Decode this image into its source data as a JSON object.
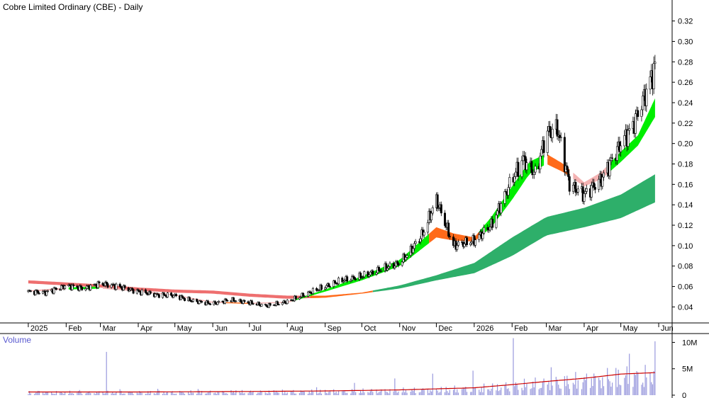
{
  "chart_title": "Cobre Limited Ordinary (CBE) - Daily",
  "volume_title": "Volume",
  "colors": {
    "candle_up": "#ffffff",
    "candle_outline": "#000000",
    "short_ribbon_up": "#00ee00",
    "short_ribbon_down": "#ff6a1a",
    "long_ribbon_up": "#2eaf6a",
    "long_ribbon_down": "#ee6f6f",
    "pink_ribbon": "#f4b3b3",
    "volume_bar": "#9999dd",
    "volume_ma": "#cc0000",
    "axis": "#000000",
    "grid": "#000000"
  },
  "chart_data": [
    {
      "type": "candlestick",
      "title": "Cobre Limited Ordinary (CBE) - Daily",
      "x_tick_labels": [
        "2025",
        "Feb",
        "Mar",
        "Apr",
        "May",
        "Jun",
        "Jul",
        "Aug",
        "Sep",
        "Oct",
        "Nov",
        "Dec",
        "2026",
        "Feb",
        "Mar",
        "Apr",
        "May",
        "Jun"
      ],
      "y_tick_labels": [
        "0.04",
        "0.06",
        "0.08",
        "0.10",
        "0.12",
        "0.14",
        "0.16",
        "0.18",
        "0.20",
        "0.22",
        "0.24",
        "0.26",
        "0.28",
        "0.30",
        "0.32"
      ],
      "ylim": [
        0.025,
        0.335
      ],
      "grid": false,
      "series": [
        {
          "kind": "close_price",
          "x": [
            "2025-01-01",
            "2025-01-15",
            "2025-02-01",
            "2025-02-15",
            "2025-03-01",
            "2025-03-15",
            "2025-04-01",
            "2025-04-15",
            "2025-05-01",
            "2025-05-15",
            "2025-06-01",
            "2025-06-15",
            "2025-07-01",
            "2025-07-15",
            "2025-08-01",
            "2025-08-15",
            "2025-09-01",
            "2025-09-15",
            "2025-10-01",
            "2025-10-15",
            "2025-11-01",
            "2025-11-10",
            "2025-11-20",
            "2025-12-01",
            "2025-12-15",
            "2026-01-01",
            "2026-01-15",
            "2026-02-01",
            "2026-02-10",
            "2026-02-20",
            "2026-03-01",
            "2026-03-10",
            "2026-03-20",
            "2026-04-01",
            "2026-04-15",
            "2026-05-01",
            "2026-05-10",
            "2026-05-20",
            "2026-06-01"
          ],
          "values": [
            0.055,
            0.054,
            0.061,
            0.058,
            0.063,
            0.06,
            0.055,
            0.052,
            0.051,
            0.046,
            0.043,
            0.047,
            0.044,
            0.041,
            0.045,
            0.052,
            0.06,
            0.066,
            0.07,
            0.076,
            0.083,
            0.095,
            0.112,
            0.145,
            0.1,
            0.105,
            0.12,
            0.165,
            0.185,
            0.17,
            0.21,
            0.215,
            0.16,
            0.15,
            0.165,
            0.2,
            0.215,
            0.245,
            0.285
          ]
        },
        {
          "kind": "short_term_ma_ribbon",
          "x": [
            "2025-01-01",
            "2025-02-01",
            "2025-03-01",
            "2025-04-01",
            "2025-05-01",
            "2025-06-01",
            "2025-07-01",
            "2025-08-01",
            "2025-09-01",
            "2025-10-01",
            "2025-11-01",
            "2025-12-01",
            "2025-12-15",
            "2026-01-01",
            "2026-01-15",
            "2026-02-01",
            "2026-02-15",
            "2026-03-01",
            "2026-03-15",
            "2026-04-01",
            "2026-04-15",
            "2026-05-01",
            "2026-05-15",
            "2026-06-01"
          ],
          "upper": [
            0.056,
            0.059,
            0.06,
            0.056,
            0.052,
            0.045,
            0.044,
            0.045,
            0.057,
            0.07,
            0.086,
            0.118,
            0.112,
            0.108,
            0.128,
            0.158,
            0.182,
            0.19,
            0.18,
            0.162,
            0.172,
            0.192,
            0.208,
            0.252
          ],
          "lower": [
            0.055,
            0.057,
            0.058,
            0.055,
            0.051,
            0.044,
            0.043,
            0.044,
            0.055,
            0.066,
            0.08,
            0.108,
            0.105,
            0.104,
            0.118,
            0.145,
            0.17,
            0.18,
            0.172,
            0.158,
            0.165,
            0.182,
            0.198,
            0.232
          ]
        },
        {
          "kind": "long_term_ma_ribbon",
          "x": [
            "2025-01-01",
            "2025-02-01",
            "2025-03-01",
            "2025-04-01",
            "2025-05-01",
            "2025-06-01",
            "2025-07-01",
            "2025-08-01",
            "2025-09-01",
            "2025-10-01",
            "2025-11-01",
            "2025-12-01",
            "2026-01-01",
            "2026-02-01",
            "2026-03-01",
            "2026-04-01",
            "2026-05-01",
            "2026-06-01"
          ],
          "upper": [
            0.066,
            0.064,
            0.062,
            0.059,
            0.057,
            0.056,
            0.053,
            0.051,
            0.051,
            0.054,
            0.061,
            0.071,
            0.083,
            0.108,
            0.128,
            0.137,
            0.15,
            0.172
          ],
          "lower": [
            0.063,
            0.061,
            0.059,
            0.056,
            0.054,
            0.053,
            0.05,
            0.048,
            0.049,
            0.053,
            0.058,
            0.066,
            0.073,
            0.09,
            0.11,
            0.118,
            0.127,
            0.144
          ]
        }
      ]
    },
    {
      "type": "bar",
      "title": "Volume",
      "y_tick_labels": [
        "10M",
        "5M",
        "0"
      ],
      "ylim": [
        0,
        11000000
      ],
      "series": [
        {
          "kind": "volume_ma",
          "x": [
            "2025-01-01",
            "2025-04-01",
            "2025-07-01",
            "2025-09-01",
            "2025-11-01",
            "2026-01-01",
            "2026-02-01",
            "2026-03-01",
            "2026-04-01",
            "2026-05-01",
            "2026-06-01"
          ],
          "values": [
            600000,
            600000,
            700000,
            800000,
            1000000,
            1400000,
            2000000,
            2600000,
            3200000,
            4000000,
            4300000
          ]
        }
      ]
    }
  ]
}
